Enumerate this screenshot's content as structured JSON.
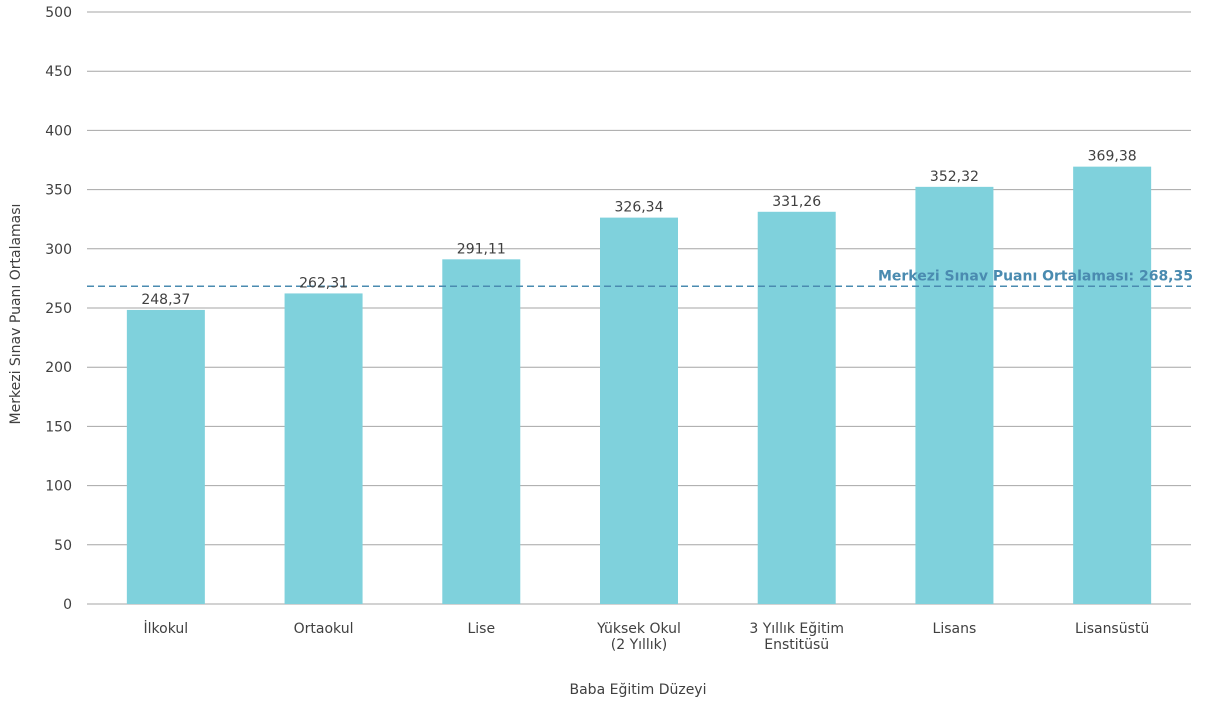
{
  "chart_data": {
    "type": "bar",
    "title": "",
    "xlabel": "Baba Eğitim Düzeyi",
    "ylabel": "Merkezi Sınav Puanı Ortalaması",
    "ylim": [
      0,
      500
    ],
    "yticks": [
      0,
      50,
      100,
      150,
      200,
      250,
      300,
      350,
      400,
      450,
      500
    ],
    "grid": true,
    "categories": [
      [
        "İlkokul"
      ],
      [
        "Ortaokul"
      ],
      [
        "Lise"
      ],
      [
        "Yüksek Okul",
        "(2 Yıllık)"
      ],
      [
        "3 Yıllık Eğitim",
        "Enstitüsü"
      ],
      [
        "Lisans"
      ],
      [
        "Lisansüstü"
      ]
    ],
    "values": [
      248.37,
      262.31,
      291.11,
      326.34,
      331.26,
      352.32,
      369.38
    ],
    "value_labels": [
      "248,37",
      "262,31",
      "291,11",
      "326,34",
      "331,26",
      "352,32",
      "369,38"
    ],
    "reference_line": {
      "value": 268.35,
      "label": "Merkezi Sınav Puanı Ortalaması: 268,35",
      "style": "dashed"
    },
    "colors": {
      "bar": "#7fd1dc",
      "reference": "#4a8bb0",
      "grid": "#a6a6a6",
      "text": "#404040"
    }
  }
}
